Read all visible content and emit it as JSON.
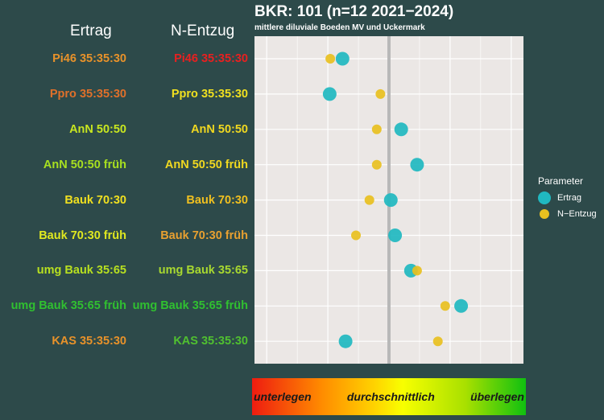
{
  "headers": {
    "ertrag": "Ertrag",
    "nentzug": "N-Entzug"
  },
  "rows": [
    {
      "ertrag_label": "Pi46 35:35:30",
      "ertrag_color": "#e8922a",
      "n_label": "Pi46 35:35:30",
      "n_color": "#e82020"
    },
    {
      "ertrag_label": "Ppro 35:35:30",
      "ertrag_color": "#e0702a",
      "n_label": "Ppro 35:35:30",
      "n_color": "#f0e020"
    },
    {
      "ertrag_label": "AnN 50:50",
      "ertrag_color": "#c8e620",
      "n_label": "AnN 50:50",
      "n_color": "#f0d820"
    },
    {
      "ertrag_label": "AnN 50:50 früh",
      "ertrag_color": "#a8e020",
      "n_label": "AnN 50:50 früh",
      "n_color": "#f0d820"
    },
    {
      "ertrag_label": "Bauk 70:30",
      "ertrag_color": "#f0e020",
      "n_label": "Bauk 70:30",
      "n_color": "#f0c020"
    },
    {
      "ertrag_label": "Bauk 70:30 früh",
      "ertrag_color": "#e0e820",
      "n_label": "Bauk 70:30 früh",
      "n_color": "#e8a030"
    },
    {
      "ertrag_label": "umg Bauk 35:65",
      "ertrag_color": "#b8e020",
      "n_label": "umg Bauk 35:65",
      "n_color": "#a8d830"
    },
    {
      "ertrag_label": "umg Bauk 35:65 früh",
      "ertrag_color": "#30c030",
      "n_label": "umg Bauk 35:65 früh",
      "n_color": "#30c030"
    },
    {
      "ertrag_label": "KAS 35:35:30",
      "ertrag_color": "#e8922a",
      "n_label": "KAS 35:35:30",
      "n_color": "#50c030"
    }
  ],
  "chart_data": {
    "type": "scatter",
    "title": "BKR: 101 (n=12 2021−2024)",
    "subtitle": "mittlere diluviale Boeden MV und Uckermark",
    "xlim": [
      -2.2,
      2.2
    ],
    "reference_line": 0,
    "categories": [
      "Pi46 35:35:30",
      "Ppro 35:35:30",
      "AnN 50:50",
      "AnN 50:50 früh",
      "Bauk 70:30",
      "Bauk 70:30 früh",
      "umg Bauk 35:65",
      "umg Bauk 35:65 früh",
      "KAS 35:35:30"
    ],
    "legend_title": "Parameter",
    "legend_position": "right",
    "series": [
      {
        "name": "Ertrag",
        "color": "#20b8c0",
        "values": [
          -0.76,
          -0.97,
          0.2,
          0.46,
          0.03,
          0.1,
          0.36,
          1.18,
          -0.71
        ]
      },
      {
        "name": "N−Entzug",
        "color": "#e8c020",
        "values": [
          -0.96,
          -0.14,
          -0.2,
          -0.2,
          -0.32,
          -0.54,
          0.46,
          0.92,
          0.8
        ]
      }
    ]
  },
  "scale": {
    "low": "unterlegen",
    "mid": "durchschnittlich",
    "high": "überlegen"
  }
}
